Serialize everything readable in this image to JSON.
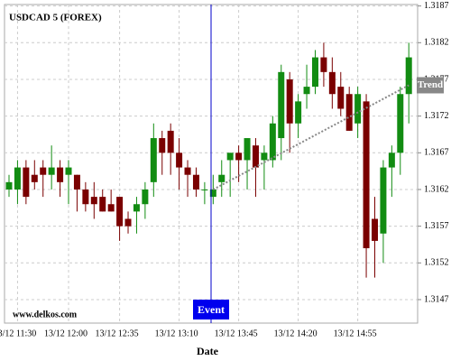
{
  "chart_data": {
    "type": "candlestick",
    "title": "USDCAD 5 (FOREX)",
    "x_label": "Date",
    "watermark": "www.delkos.com",
    "event_label": "Event",
    "categories": [
      null,
      "13/12 11:30",
      null,
      null,
      null,
      null,
      null,
      "13/12 12:00",
      null,
      null,
      null,
      null,
      null,
      "13/12 12:35",
      null,
      null,
      null,
      null,
      null,
      null,
      "13/12 13:10",
      null,
      null,
      null,
      null,
      null,
      null,
      "13/12 13:45",
      null,
      null,
      null,
      null,
      null,
      null,
      "13/12 14:20",
      null,
      null,
      null,
      null,
      null,
      null,
      "13/12 14:55",
      null,
      null,
      null,
      null,
      null,
      null
    ],
    "open": [
      1.3162,
      1.3162,
      1.3165,
      1.3164,
      1.3165,
      1.3164,
      1.3165,
      1.3164,
      1.3164,
      1.3162,
      1.3161,
      1.3161,
      1.316,
      1.3161,
      1.3158,
      1.3159,
      1.316,
      1.3163,
      1.3169,
      1.317,
      1.3167,
      1.3165,
      1.3164,
      1.3162,
      1.3161,
      1.3163,
      1.3166,
      1.3167,
      1.3166,
      1.3168,
      1.3166,
      1.3166,
      1.3169,
      1.3177,
      1.3171,
      1.3175,
      1.3176,
      1.318,
      1.3178,
      1.3176,
      1.3175,
      1.3171,
      1.3174,
      1.3158,
      1.3156,
      1.3165,
      1.3167,
      1.3175
    ],
    "high": [
      1.3164,
      1.3166,
      1.3166,
      1.3166,
      1.3166,
      1.3168,
      1.3166,
      1.3166,
      1.3164,
      1.3163,
      1.3163,
      1.3162,
      1.3162,
      1.3161,
      1.3159,
      1.3161,
      1.3163,
      1.3171,
      1.317,
      1.3171,
      1.3169,
      1.3166,
      1.3165,
      1.3163,
      1.3164,
      1.3166,
      1.3167,
      1.3168,
      1.3169,
      1.3169,
      1.3168,
      1.3172,
      1.3179,
      1.3178,
      1.3175,
      1.3179,
      1.3181,
      1.3182,
      1.318,
      1.3178,
      1.3176,
      1.3176,
      1.3175,
      1.3161,
      1.3166,
      1.3168,
      1.3176,
      1.3182
    ],
    "low": [
      1.3161,
      1.316,
      1.316,
      1.3162,
      1.3161,
      1.3162,
      1.3161,
      1.316,
      1.3159,
      1.3159,
      1.3158,
      1.3159,
      1.3159,
      1.3155,
      1.3156,
      1.3156,
      1.3158,
      1.3161,
      1.3164,
      1.3164,
      1.3162,
      1.3161,
      1.3161,
      1.316,
      1.316,
      1.3161,
      1.3161,
      1.3163,
      1.3162,
      1.3161,
      1.3162,
      1.3165,
      1.3166,
      1.3167,
      1.3169,
      1.3173,
      1.3175,
      1.3176,
      1.3173,
      1.3172,
      1.317,
      1.3169,
      1.315,
      1.315,
      1.3152,
      1.3161,
      1.3164,
      1.3171
    ],
    "close": [
      1.3163,
      1.3165,
      1.3161,
      1.3163,
      1.3164,
      1.3165,
      1.3163,
      1.3165,
      1.3162,
      1.316,
      1.316,
      1.3159,
      1.3159,
      1.3157,
      1.3157,
      1.316,
      1.3162,
      1.3169,
      1.3167,
      1.3167,
      1.3165,
      1.3164,
      1.3162,
      1.3162,
      1.3162,
      1.3164,
      1.3167,
      1.3166,
      1.3169,
      1.3165,
      1.3167,
      1.3171,
      1.3178,
      1.3171,
      1.3174,
      1.3176,
      1.318,
      1.3178,
      1.3175,
      1.3173,
      1.317,
      1.3175,
      1.3154,
      1.3155,
      1.3165,
      1.3167,
      1.3175,
      1.318
    ],
    "up_color": "#128c12",
    "down_color": "#7a0000",
    "trend": {
      "name": "Trend",
      "color": "#888888",
      "values": [
        null,
        null,
        null,
        null,
        null,
        null,
        null,
        null,
        null,
        null,
        null,
        null,
        null,
        null,
        null,
        null,
        null,
        null,
        null,
        null,
        null,
        null,
        null,
        null,
        1.3162,
        null,
        null,
        null,
        null,
        null,
        null,
        null,
        null,
        null,
        null,
        null,
        null,
        null,
        null,
        null,
        null,
        null,
        null,
        null,
        null,
        null,
        null,
        1.31762
      ]
    },
    "ylim": [
      1.31438,
      1.31872
    ],
    "yticks": [
      1.3147,
      1.3152,
      1.3157,
      1.3162,
      1.3167,
      1.3172,
      1.3177,
      1.3182,
      1.3187
    ],
    "grid": true
  }
}
